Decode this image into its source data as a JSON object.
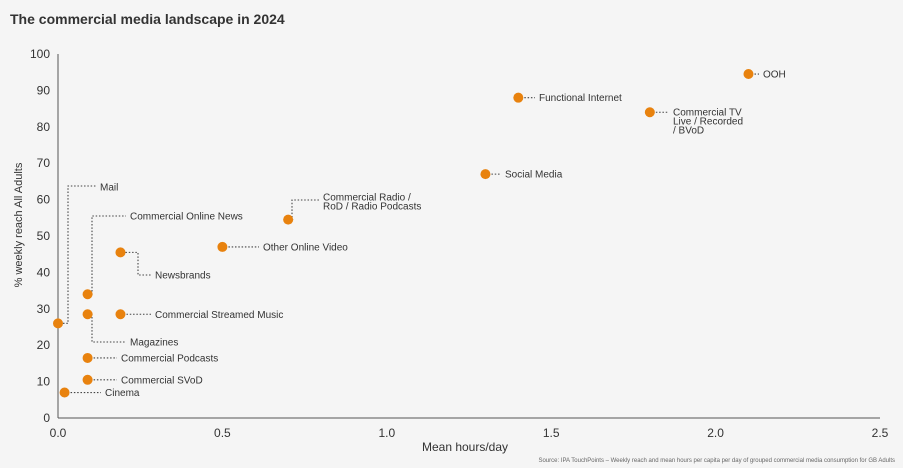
{
  "chart_data": {
    "type": "scatter",
    "title": "The commercial media landscape in 2024",
    "xlabel": "Mean hours/day",
    "ylabel": "% weekly reach All Adults",
    "xlim": [
      0,
      2.5
    ],
    "ylim": [
      0,
      100
    ],
    "xticks": [
      "0.0",
      "0.5",
      "1.0",
      "1.5",
      "2.0",
      "2.5"
    ],
    "yticks": [
      "0",
      "10",
      "20",
      "30",
      "40",
      "50",
      "60",
      "70",
      "80",
      "90",
      "100"
    ],
    "grid": false,
    "marker_color": "#e8820e",
    "points": [
      {
        "label": "OOH",
        "x": 2.1,
        "y": 94.5
      },
      {
        "label": "Functional Internet",
        "x": 1.4,
        "y": 88
      },
      {
        "label": "Commercial TV Live / Recorded / BVoD",
        "label_lines": [
          "Commercial TV",
          "Live / Recorded",
          "/ BVoD"
        ],
        "x": 1.8,
        "y": 84
      },
      {
        "label": "Social Media",
        "x": 1.3,
        "y": 67
      },
      {
        "label": "Commercial Radio / RoD / Radio Podcasts",
        "label_lines": [
          "Commercial Radio /",
          "RoD / Radio Podcasts"
        ],
        "x": 0.7,
        "y": 54.5
      },
      {
        "label": "Other Online Video",
        "x": 0.5,
        "y": 47
      },
      {
        "label": "Newsbrands",
        "x": 0.19,
        "y": 45.5
      },
      {
        "label": "Commercial Online News",
        "x": 0.09,
        "y": 34
      },
      {
        "label": "Magazines",
        "x": 0.09,
        "y": 28.5
      },
      {
        "label": "Commercial Streamed Music",
        "x": 0.19,
        "y": 28.5
      },
      {
        "label": "Mail",
        "x": 0.0,
        "y": 26
      },
      {
        "label": "Commercial Podcasts",
        "x": 0.09,
        "y": 16.5
      },
      {
        "label": "Commercial SVoD",
        "x": 0.09,
        "y": 10.5
      },
      {
        "label": "Cinema",
        "x": 0.02,
        "y": 7
      }
    ]
  },
  "source_text": "Source: IPA TouchPoints – Weekly reach and mean hours per capita per day of grouped commercial media consumption for GB Adults"
}
